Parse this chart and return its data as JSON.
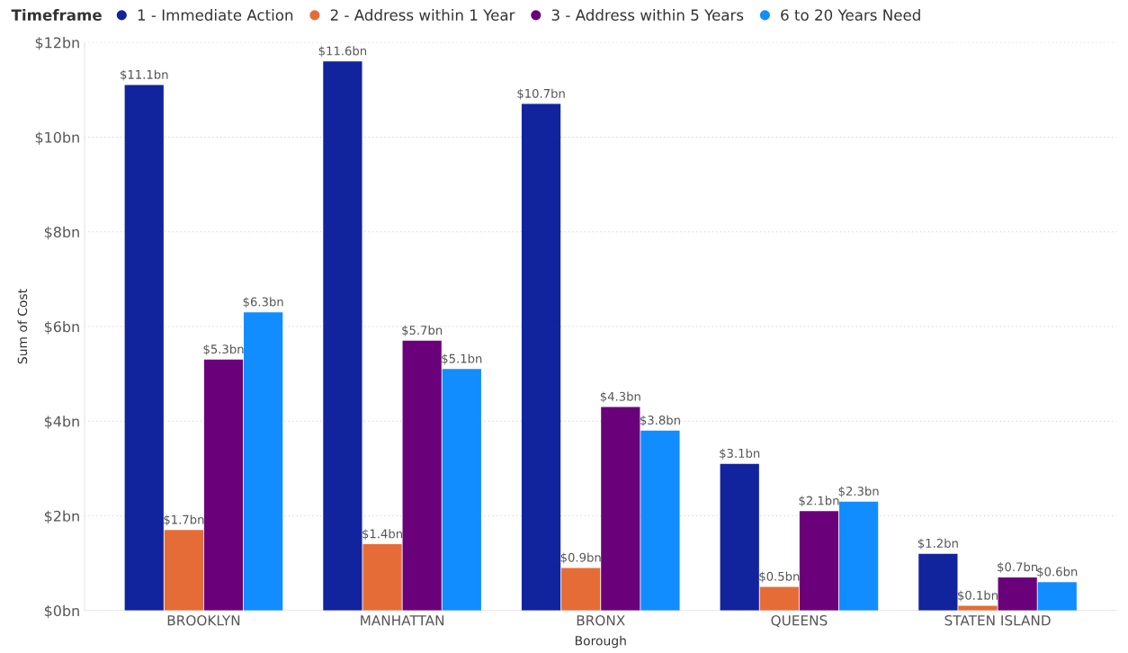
{
  "chart_data": {
    "type": "bar",
    "xlabel": "Borough",
    "ylabel": "Sum of Cost",
    "legend_title": "Timeframe",
    "legend": "top left",
    "grid": "y",
    "categories": [
      "BROOKLYN",
      "MANHATTAN",
      "BRONX",
      "QUEENS",
      "STATEN ISLAND"
    ],
    "series": [
      {
        "name": "1 - Immediate Action",
        "color": "#12239e",
        "values": [
          11.1,
          11.6,
          10.7,
          3.1,
          1.2
        ],
        "value_labels": [
          "$11.1bn",
          "$11.6bn",
          "$10.7bn",
          "$3.1bn",
          "$1.2bn"
        ]
      },
      {
        "name": "2 - Address within 1 Year",
        "color": "#e66c37",
        "values": [
          1.7,
          1.4,
          0.9,
          0.5,
          0.1
        ],
        "value_labels": [
          "$1.7bn",
          "$1.4bn",
          "$0.9bn",
          "$0.5bn",
          "$0.1bn"
        ]
      },
      {
        "name": "3 - Address within 5 Years",
        "color": "#6b007b",
        "values": [
          5.3,
          5.7,
          4.3,
          2.1,
          0.7
        ],
        "value_labels": [
          "$5.3bn",
          "$5.7bn",
          "$4.3bn",
          "$2.1bn",
          "$0.7bn"
        ]
      },
      {
        "name": "6 to 20 Years Need",
        "color": "#118dff",
        "values": [
          6.3,
          5.1,
          3.8,
          2.3,
          0.6
        ],
        "value_labels": [
          "$6.3bn",
          "$5.1bn",
          "$3.8bn",
          "$2.3bn",
          "$0.6bn"
        ]
      }
    ],
    "ylim": [
      0,
      12
    ],
    "yticks": [
      {
        "value": 0,
        "label": "$0bn"
      },
      {
        "value": 2,
        "label": "$2bn"
      },
      {
        "value": 4,
        "label": "$4bn"
      },
      {
        "value": 6,
        "label": "$6bn"
      },
      {
        "value": 8,
        "label": "$8bn"
      },
      {
        "value": 10,
        "label": "$10bn"
      },
      {
        "value": 12,
        "label": "$12bn"
      }
    ]
  }
}
